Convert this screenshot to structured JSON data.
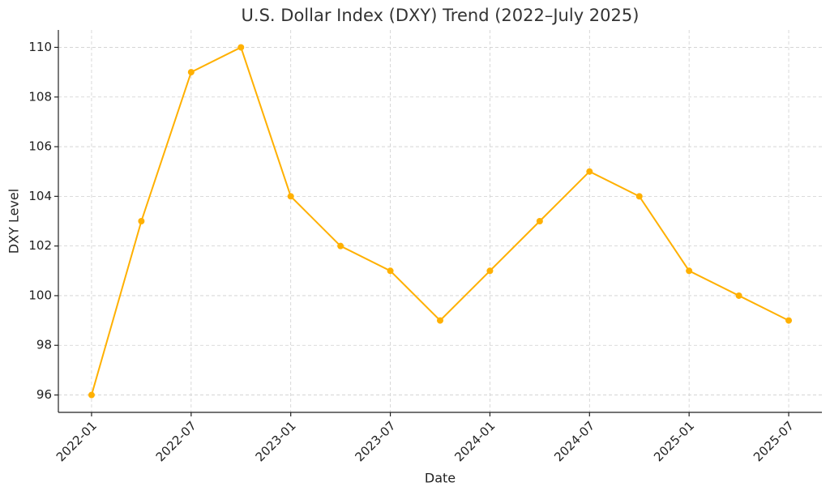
{
  "chart_data": {
    "type": "line",
    "title": "U.S. Dollar Index (DXY) Trend (2022–July 2025)",
    "x_label": "Date",
    "y_label": "DXY Level",
    "x": [
      "2022-01",
      "2022-04",
      "2022-07",
      "2022-10",
      "2023-01",
      "2023-04",
      "2023-07",
      "2023-10",
      "2024-01",
      "2024-04",
      "2024-07",
      "2024-10",
      "2025-01",
      "2025-04",
      "2025-07"
    ],
    "series": [
      {
        "name": "DXY",
        "color": "#ffb000",
        "values": [
          96,
          103,
          109,
          110,
          104,
          102,
          101,
          99,
          101,
          103,
          105,
          104,
          101,
          100,
          99
        ]
      }
    ],
    "xlim": [
      "2021-11",
      "2025-09"
    ],
    "xticks": [
      "2022-01",
      "2022-07",
      "2023-01",
      "2023-07",
      "2024-01",
      "2024-07",
      "2025-01",
      "2025-07"
    ],
    "ylim": [
      95.3,
      110.7
    ],
    "yticks": [
      96,
      98,
      100,
      102,
      104,
      106,
      108,
      110
    ],
    "grid": true,
    "markers": true
  }
}
